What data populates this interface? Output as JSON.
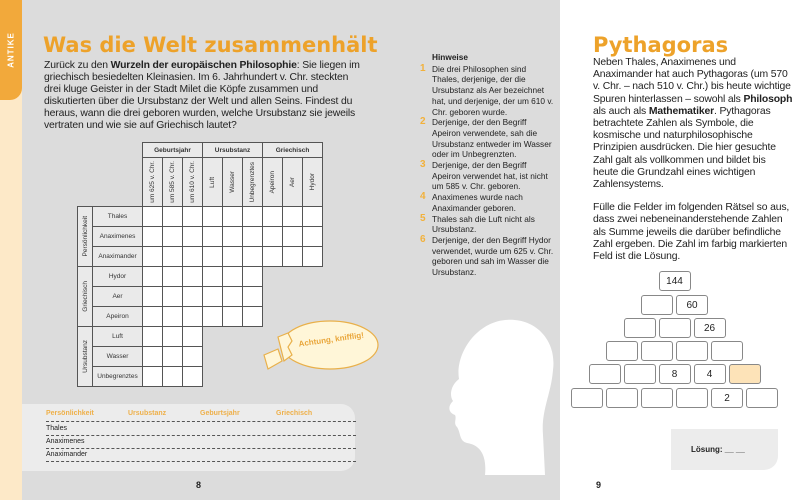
{
  "section_tab": "ANTIKE",
  "left": {
    "title": "Was die Welt zusammenhält",
    "intro_pre": "Zurück zu den ",
    "intro_bold": "Wurzeln der europäischen Philosophie",
    "intro_post": ": Sie liegen im griechisch besiedelten Kleinasien. Im 6. Jahrhundert v. Chr. steckten drei kluge Geister in der Stadt Milet die Köpfe zusammen und diskutierten über die Ursubstanz der Welt und allen Seins. Findest du heraus, wann die drei geboren wurden, welche Ursubstanz sie jeweils vertraten und wie sie auf Griechisch lautet?",
    "grid": {
      "col_groups": [
        {
          "label": "Geburtsjahr",
          "cols": [
            "um 625 v. Chr.",
            "um 585 v. Chr.",
            "um 610 v. Chr."
          ]
        },
        {
          "label": "Ursubstanz",
          "cols": [
            "Luft",
            "Wasser",
            "Unbegrenztes"
          ]
        },
        {
          "label": "Griechisch",
          "cols": [
            "Apeiron",
            "Aer",
            "Hydor"
          ]
        }
      ],
      "row_groups": [
        {
          "label": "Persönlichkeit",
          "rows": [
            "Thales",
            "Anaximenes",
            "Anaximander"
          ]
        },
        {
          "label": "Griechisch",
          "rows": [
            "Hydor",
            "Aer",
            "Apeiron"
          ]
        },
        {
          "label": "Ursubstanz",
          "rows": [
            "Luft",
            "Wasser",
            "Unbegrenztes"
          ]
        }
      ]
    },
    "bubble": "Achtung, knifflig!",
    "answer_table": {
      "headers": [
        "Persönlichkeit",
        "Ursubstanz",
        "Geburtsjahr",
        "Griechisch"
      ],
      "rows": [
        "Thales",
        "Anaximenes",
        "Anaximander"
      ]
    },
    "page_number": "8"
  },
  "hints": {
    "title": "Hinweise",
    "items": [
      {
        "n": "1",
        "text": "Die drei Philosophen sind Thales, derjenige, der die Ursubstanz als Aer bezeichnet hat, und derjenige, der um 610 v. Chr. geboren wurde."
      },
      {
        "n": "2",
        "text": "Derjenige, der den Begriff Apeiron verwendete, sah die Ursubstanz entweder im Wasser oder im Unbegrenzten."
      },
      {
        "n": "3",
        "text": "Derjenige, der den Begriff Apeiron verwendet hat, ist nicht um 585 v. Chr. geboren."
      },
      {
        "n": "4",
        "text": "Anaximenes wurde nach Anaximander geboren."
      },
      {
        "n": "5",
        "text": "Thales sah die Luft nicht als Ursubstanz."
      },
      {
        "n": "6",
        "text": "Derjenige, der den Begriff Hydor verwendet, wurde um 625 v. Chr. geboren und sah im Wasser die Ursubstanz."
      }
    ]
  },
  "right": {
    "title": "Pythagoras",
    "p1_a": "Neben Thales, Anaximenes und Anaximander hat auch Pythagoras (um 570 v. Chr. – nach 510 v. Chr.) bis heute wichtige Spuren hinterlassen – sowohl als ",
    "p1_b1": "Philosoph",
    "p1_c": " als auch als ",
    "p1_b2": "Mathematiker",
    "p1_d": ". Pythagoras betrachtete Zahlen als Symbole, die kosmische und naturphilosophische Prinzipien ausdrücken. Die hier gesuchte Zahl galt als vollkommen und bildet bis heute die Grundzahl eines wichtigen Zahlensystems.",
    "p2": "Fülle die Felder im folgenden Rätsel so aus, dass zwei nebeneinanderstehende Zahlen als Summe jeweils die darüber befindliche Zahl ergeben. Die Zahl im farbig markierten Feld ist die Lösung.",
    "pyramid": [
      [
        "144"
      ],
      [
        "",
        "60"
      ],
      [
        "",
        "",
        "26"
      ],
      [
        "",
        "",
        "",
        ""
      ],
      [
        "",
        "",
        "8",
        "4",
        ""
      ],
      [
        "",
        "",
        "",
        "",
        "2",
        ""
      ]
    ],
    "highlight": {
      "row": 4,
      "col": 4,
      "color": "#fde3b8"
    },
    "solution_label": "Lösung:  __ __",
    "page_number": "9"
  },
  "colors": {
    "accent": "#eda22a",
    "page_gray": "#dcdcdc"
  }
}
